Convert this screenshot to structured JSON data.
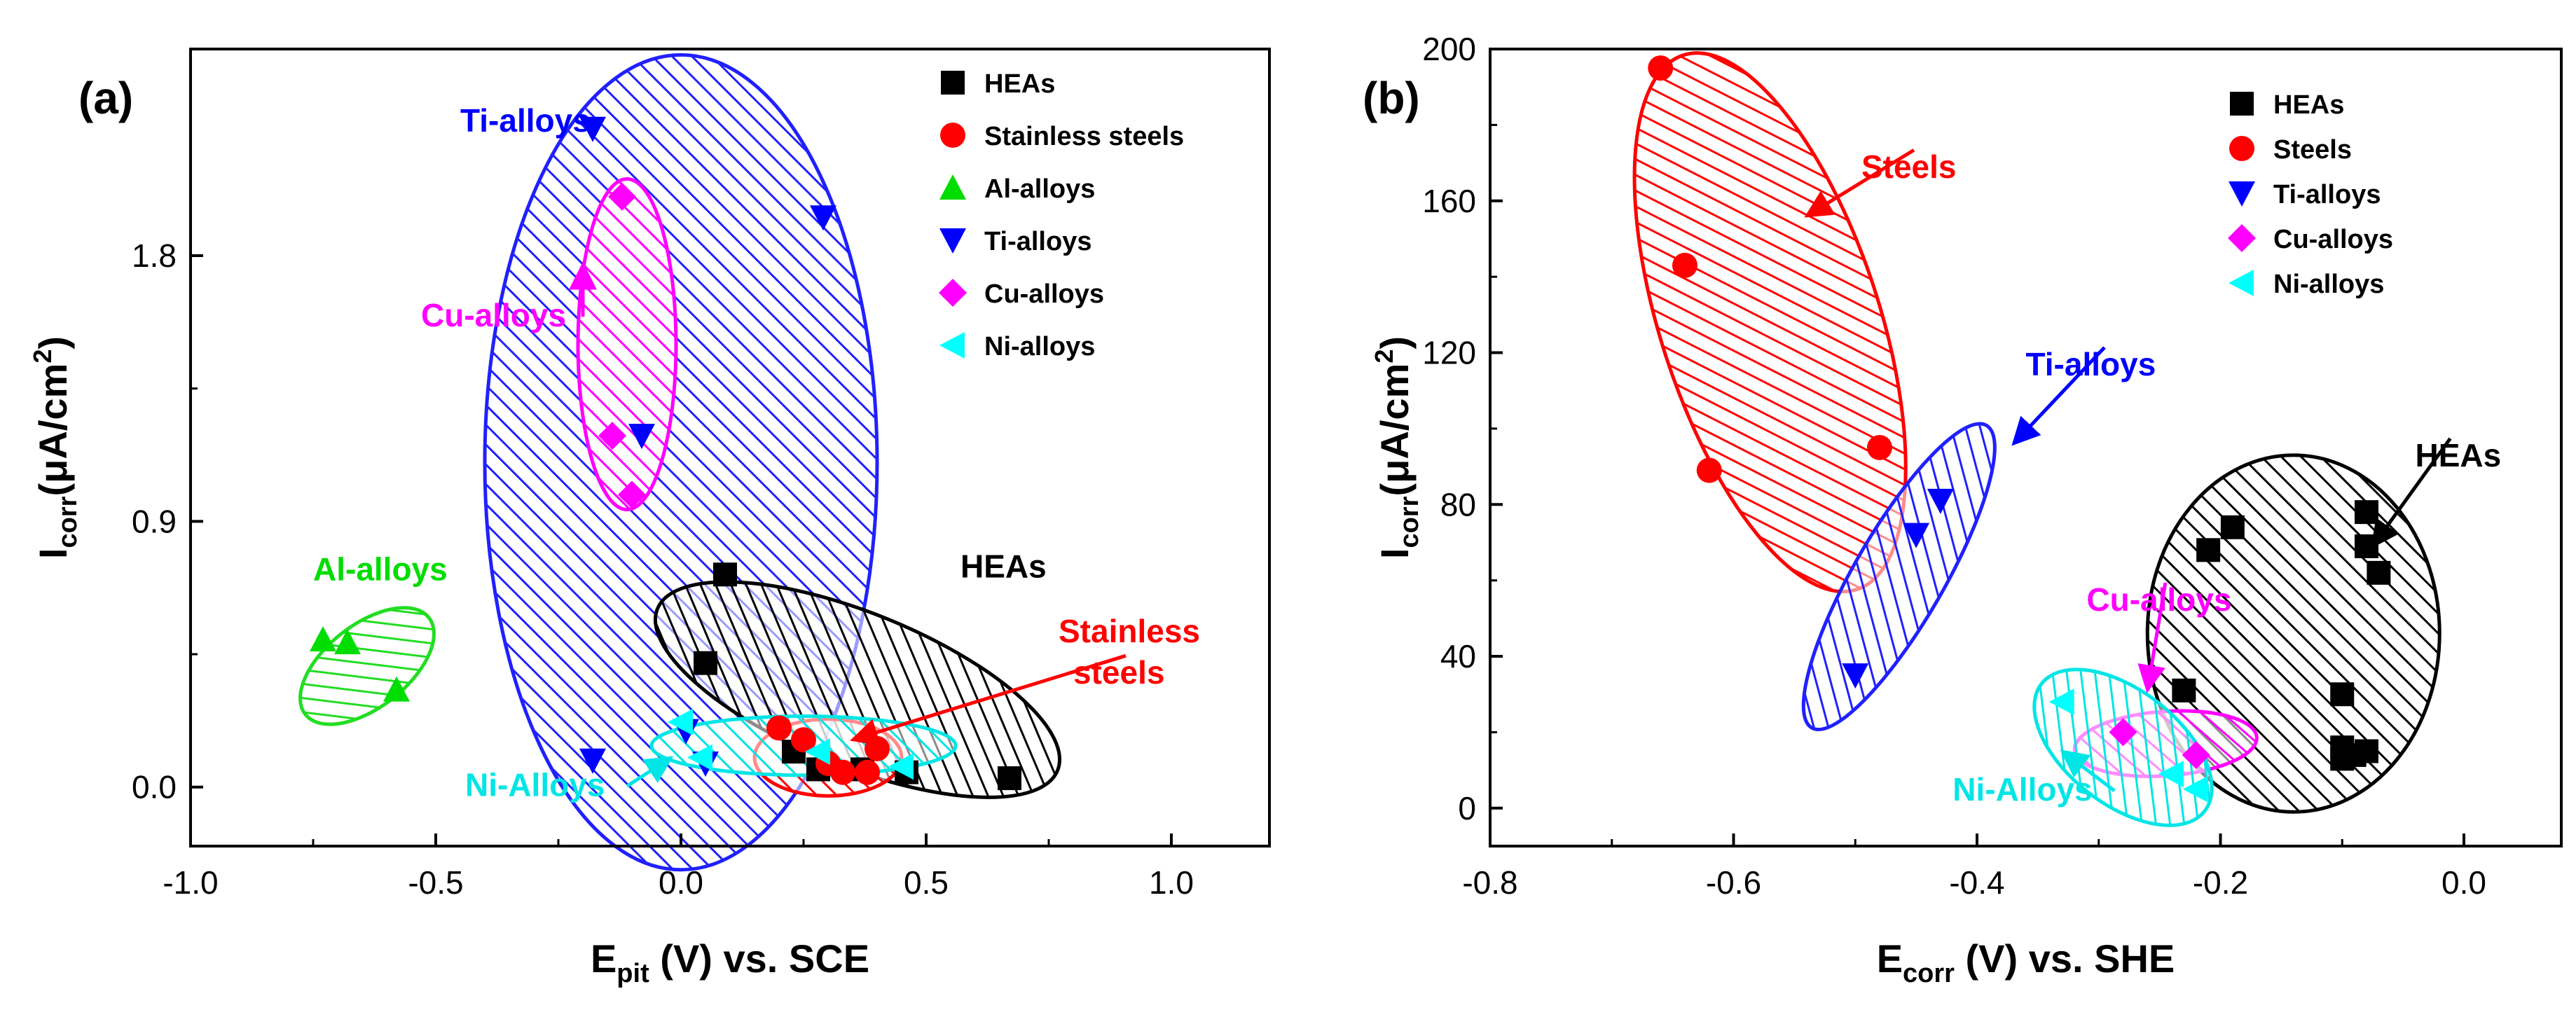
{
  "chart_data": [
    {
      "type": "scatter",
      "panel_label": "(a)",
      "xlabel": {
        "main": "E",
        "sub": "pit",
        "rest": " (V) vs. SCE"
      },
      "ylabel": {
        "main": "I",
        "sub": "corr",
        "rest": "(μA/cm",
        "sup": "2",
        "close": ")"
      },
      "xlim": [
        -1.0,
        1.2
      ],
      "ylim": [
        -0.2,
        2.5
      ],
      "xticks": [
        -1.0,
        -0.5,
        0.0,
        0.5,
        1.0
      ],
      "xtick_labels": [
        "-1.0",
        "-0.5",
        "0.0",
        "0.5",
        "1.0"
      ],
      "yticks": [
        0.0,
        0.9,
        1.8
      ],
      "ytick_labels": [
        "0.0",
        "0.9",
        "1.8"
      ],
      "legend_position": "top-right",
      "series": [
        {
          "name": "HEAs",
          "marker": "square",
          "color": "#000000",
          "points": [
            [
              0.09,
              0.72
            ],
            [
              0.05,
              0.42
            ],
            [
              0.23,
              0.12
            ],
            [
              0.28,
              0.06
            ],
            [
              0.37,
              0.06
            ],
            [
              0.46,
              0.05
            ],
            [
              0.67,
              0.03
            ]
          ]
        },
        {
          "name": "Stainless steels",
          "marker": "circle",
          "color": "#ff0000",
          "points": [
            [
              0.2,
              0.2
            ],
            [
              0.25,
              0.16
            ],
            [
              0.3,
              0.08
            ],
            [
              0.33,
              0.05
            ],
            [
              0.38,
              0.05
            ],
            [
              0.4,
              0.13
            ]
          ]
        },
        {
          "name": "Al-alloys",
          "marker": "triangle-up",
          "color": "#00dd00",
          "points": [
            [
              -0.73,
              0.5
            ],
            [
              -0.68,
              0.49
            ],
            [
              -0.58,
              0.33
            ]
          ]
        },
        {
          "name": "Ti-alloys",
          "marker": "triangle-down",
          "color": "#0000ff",
          "points": [
            [
              -0.18,
              2.23
            ],
            [
              0.29,
              1.93
            ],
            [
              -0.08,
              1.19
            ],
            [
              -0.18,
              0.09
            ],
            [
              0.01,
              0.19
            ],
            [
              0.05,
              0.08
            ]
          ]
        },
        {
          "name": "Cu-alloys",
          "marker": "diamond",
          "color": "#ff00ff",
          "points": [
            [
              -0.12,
              2.0
            ],
            [
              -0.14,
              1.19
            ],
            [
              -0.1,
              0.99
            ]
          ]
        },
        {
          "name": "Ni-alloys",
          "marker": "triangle-left",
          "color": "#00ffff",
          "points": [
            [
              0.0,
              0.22
            ],
            [
              0.04,
              0.1
            ],
            [
              0.28,
              0.12
            ],
            [
              0.45,
              0.07
            ]
          ]
        }
      ],
      "regions": [
        {
          "name": "Ti-alloys",
          "color": "#2020ff",
          "cx": 0.0,
          "cy": 1.1,
          "rx": 0.4,
          "ry": 1.38,
          "angle": 0
        },
        {
          "name": "Cu-alloys",
          "color": "#ff00ff",
          "cx": -0.11,
          "cy": 1.5,
          "rx": 0.1,
          "ry": 0.56,
          "angle": 0
        },
        {
          "name": "Al-alloys",
          "color": "#22dd22",
          "cx": -0.64,
          "cy": 0.41,
          "rx": 0.16,
          "ry": 0.14,
          "angle": -38
        },
        {
          "name": "HEAs",
          "color": "#000000",
          "cx": 0.36,
          "cy": 0.33,
          "rx": 0.44,
          "ry": 0.26,
          "angle": 22
        },
        {
          "name": "Stainless steels",
          "color": "#ff0000",
          "cx": 0.3,
          "cy": 0.1,
          "rx": 0.15,
          "ry": 0.13,
          "angle": 0
        },
        {
          "name": "Ni-alloys",
          "color": "#00e5e5",
          "cx": 0.25,
          "cy": 0.14,
          "rx": 0.31,
          "ry": 0.1,
          "angle": 0
        }
      ],
      "annotations": [
        {
          "text": "Ti-alloys",
          "color": "#0000ff",
          "x": -0.45,
          "y": 2.22
        },
        {
          "text": "Cu-alloys",
          "color": "#ff00ff",
          "x": -0.53,
          "y": 1.56,
          "arrow_to": [
            -0.2,
            1.77
          ]
        },
        {
          "text": "Al-alloys",
          "color": "#00dd00",
          "x": -0.75,
          "y": 0.7
        },
        {
          "text": "HEAs",
          "color": "#000000",
          "x": 0.57,
          "y": 0.71
        },
        {
          "text": "Stainless",
          "color": "#ff0000",
          "x": 0.77,
          "y": 0.49
        },
        {
          "text": "steels",
          "color": "#ff0000",
          "x": 0.8,
          "y": 0.35,
          "arrow_to": [
            0.35,
            0.16
          ]
        },
        {
          "text": "Ni-Alloys",
          "color": "#00e5e5",
          "x": -0.44,
          "y": -0.03,
          "arrow_to": [
            -0.02,
            0.1
          ]
        }
      ]
    },
    {
      "type": "scatter",
      "panel_label": "(b)",
      "xlabel": {
        "main": "E",
        "sub": "corr",
        "rest": " (V) vs. SHE"
      },
      "ylabel": {
        "main": "I",
        "sub": "corr",
        "rest": "(μA/cm",
        "sup": "2",
        "close": ")"
      },
      "xlim": [
        -0.8,
        0.08
      ],
      "ylim": [
        -10,
        200
      ],
      "xticks": [
        -0.8,
        -0.6,
        -0.4,
        -0.2,
        0.0
      ],
      "xtick_labels": [
        "-0.8",
        "-0.6",
        "-0.4",
        "-0.2",
        "0.0"
      ],
      "yticks": [
        0,
        40,
        80,
        120,
        160,
        200
      ],
      "ytick_labels": [
        "0",
        "40",
        "80",
        "120",
        "160",
        "200"
      ],
      "legend_position": "top-right",
      "series": [
        {
          "name": "HEAs",
          "marker": "square",
          "color": "#000000",
          "points": [
            [
              -0.08,
              78
            ],
            [
              -0.21,
              68
            ],
            [
              -0.19,
              74
            ],
            [
              -0.08,
              69
            ],
            [
              -0.07,
              62
            ],
            [
              -0.23,
              31
            ],
            [
              -0.1,
              30
            ],
            [
              -0.1,
              16
            ],
            [
              -0.09,
              14
            ],
            [
              -0.08,
              15
            ],
            [
              -0.1,
              13
            ]
          ]
        },
        {
          "name": "Steels",
          "marker": "circle",
          "color": "#ff0000",
          "points": [
            [
              -0.66,
              195
            ],
            [
              -0.64,
              143
            ],
            [
              -0.62,
              89
            ],
            [
              -0.48,
              95
            ]
          ]
        },
        {
          "name": "Ti-alloys",
          "marker": "triangle-down",
          "color": "#0000ff",
          "points": [
            [
              -0.43,
              81
            ],
            [
              -0.45,
              72
            ],
            [
              -0.5,
              35
            ]
          ]
        },
        {
          "name": "Cu-alloys",
          "marker": "diamond",
          "color": "#ff00ff",
          "points": [
            [
              -0.28,
              20
            ],
            [
              -0.22,
              14
            ]
          ]
        },
        {
          "name": "Ni-alloys",
          "marker": "triangle-left",
          "color": "#00ffff",
          "points": [
            [
              -0.33,
              28
            ],
            [
              -0.24,
              9
            ],
            [
              -0.22,
              5
            ]
          ]
        }
      ],
      "regions": [
        {
          "name": "Steels",
          "color": "#ff0000",
          "cx": -0.57,
          "cy": 128,
          "rx": 0.09,
          "ry": 74,
          "angle": -18
        },
        {
          "name": "Ti-alloys",
          "color": "#2020ff",
          "cx": -0.464,
          "cy": 61,
          "rx": 0.037,
          "ry": 46,
          "angle": 30
        },
        {
          "name": "HEAs",
          "color": "#000000",
          "cx": -0.14,
          "cy": 46,
          "rx": 0.12,
          "ry": 47,
          "angle": 0
        },
        {
          "name": "Cu-alloys",
          "color": "#ff00ff",
          "cx": -0.245,
          "cy": 17,
          "rx": 0.075,
          "ry": 8.5,
          "angle": -4
        },
        {
          "name": "Ni-alloys",
          "color": "#00e5e5",
          "cx": -0.28,
          "cy": 16,
          "rx": 0.085,
          "ry": 15,
          "angle": 38
        }
      ],
      "annotations": [
        {
          "text": "Steels",
          "color": "#ff0000",
          "x": -0.495,
          "y": 166,
          "arrow_to": [
            -0.54,
            156
          ]
        },
        {
          "text": "Ti-alloys",
          "color": "#0000ff",
          "x": -0.36,
          "y": 114,
          "arrow_to": [
            -0.37,
            96
          ]
        },
        {
          "text": "HEAs",
          "color": "#000000",
          "x": -0.04,
          "y": 90,
          "arrow_to": [
            -0.075,
            69
          ]
        },
        {
          "text": "Cu-alloys",
          "color": "#ff00ff",
          "x": -0.31,
          "y": 52,
          "arrow_to": [
            -0.26,
            31
          ]
        },
        {
          "text": "Ni-Alloys",
          "color": "#00e5e5",
          "x": -0.42,
          "y": 2,
          "arrow_to": [
            -0.33,
            15
          ]
        }
      ]
    }
  ]
}
